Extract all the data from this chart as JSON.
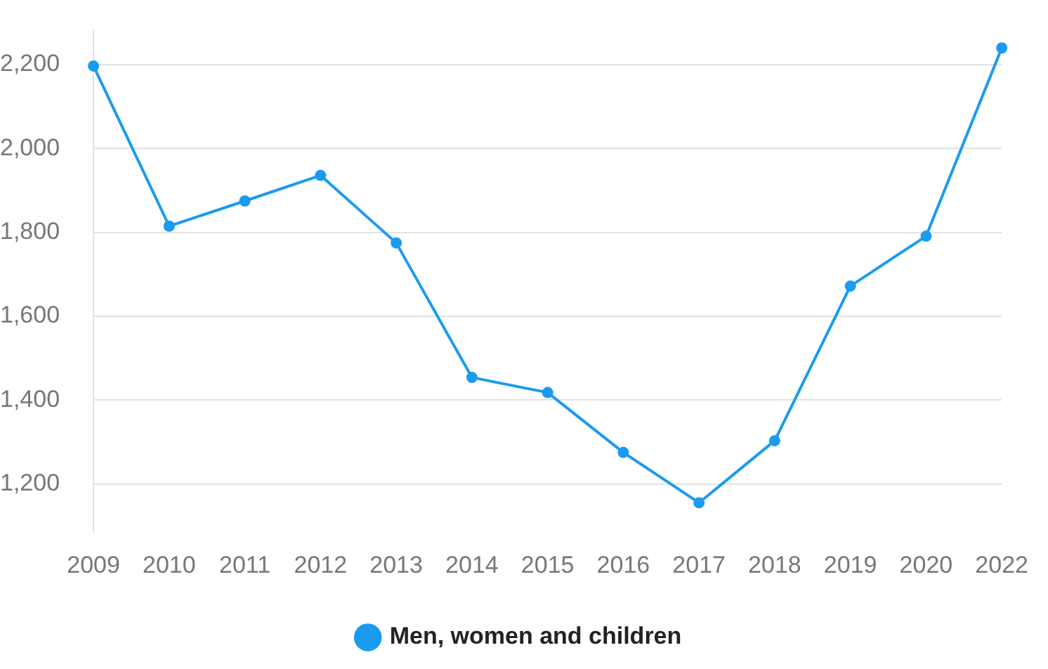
{
  "chart_data": {
    "type": "line",
    "categories": [
      "2009",
      "2010",
      "2011",
      "2012",
      "2013",
      "2014",
      "2015",
      "2016",
      "2017",
      "2018",
      "2019",
      "2020",
      "2022"
    ],
    "series": [
      {
        "name": "Men, women and children",
        "color": "#1a9bf0",
        "values": [
          2197,
          1815,
          1875,
          1936,
          1775,
          1454,
          1418,
          1275,
          1155,
          1303,
          1672,
          1791,
          2240
        ]
      }
    ],
    "ylim": [
      1085,
      2280
    ],
    "yticks": [
      {
        "value": 1200,
        "label": "1,200"
      },
      {
        "value": 1400,
        "label": "1,400"
      },
      {
        "value": 1600,
        "label": "1,600"
      },
      {
        "value": 1800,
        "label": "1,800"
      },
      {
        "value": 2000,
        "label": "2,000"
      },
      {
        "value": 2200,
        "label": "2,200"
      }
    ],
    "grid": "y",
    "legend": "bottom",
    "marker": "circle",
    "line_style": "solid"
  }
}
